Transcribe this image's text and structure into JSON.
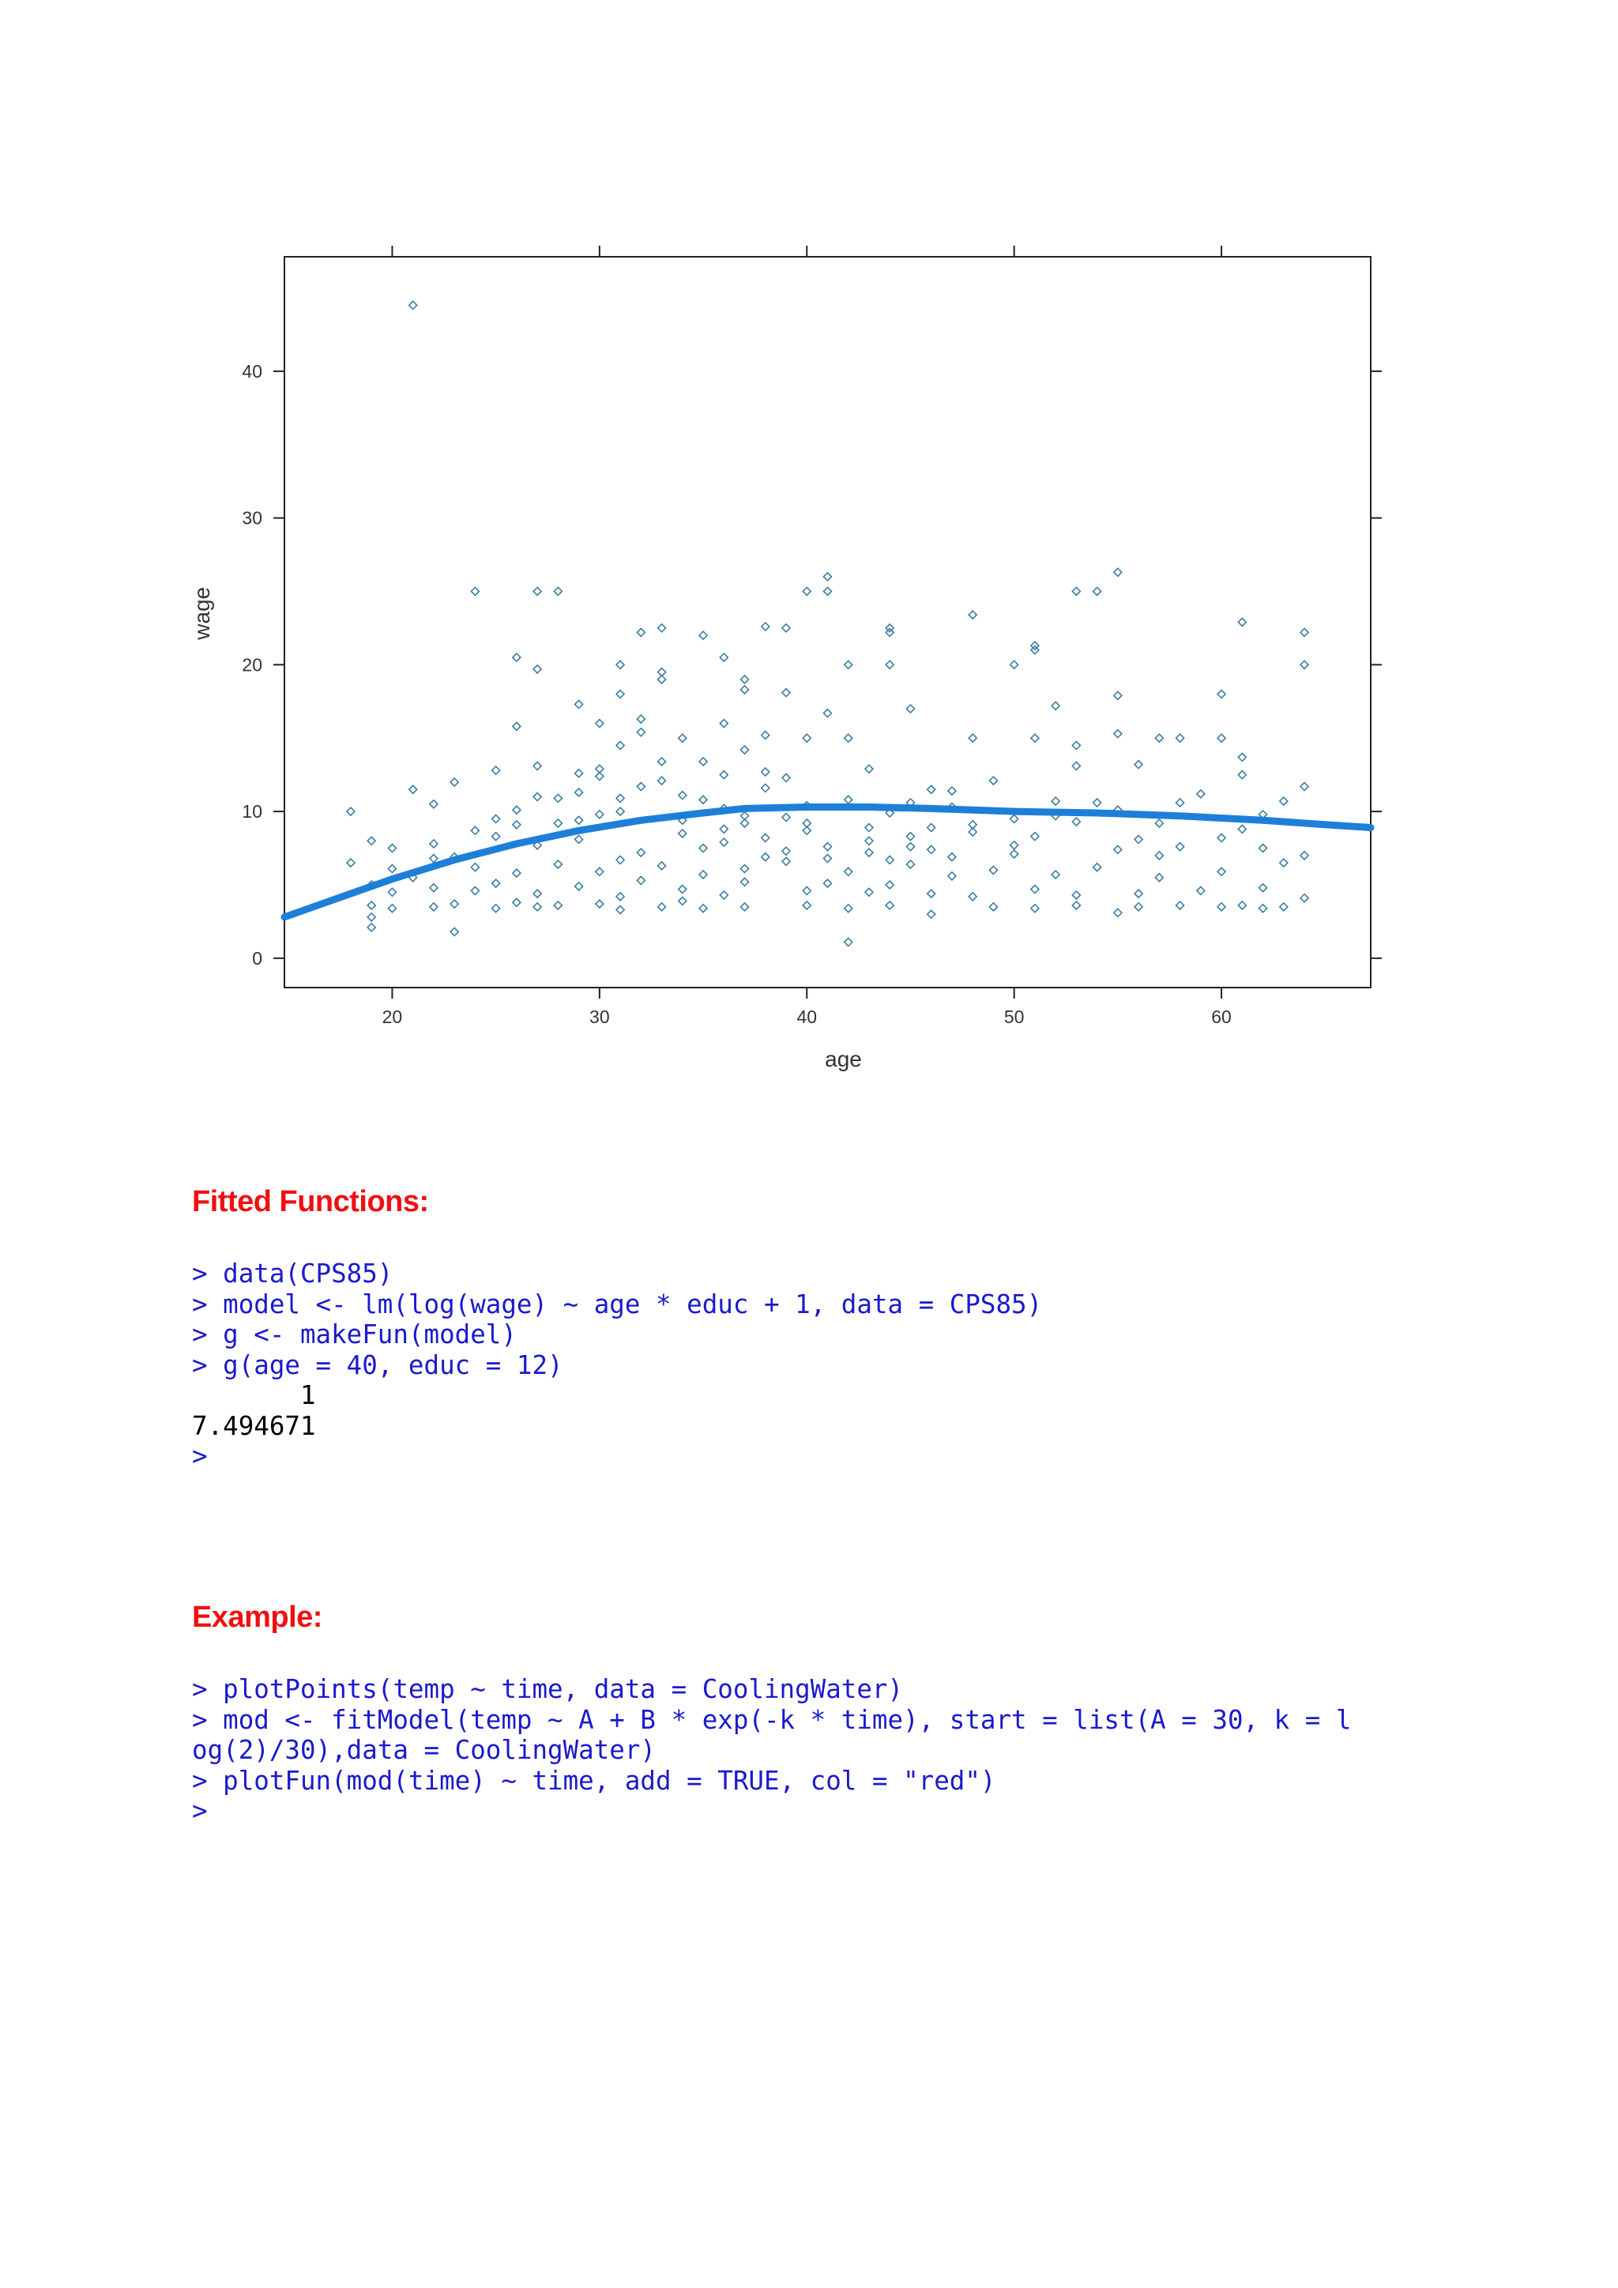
{
  "chart_data": {
    "type": "scatter",
    "xlabel": "age",
    "ylabel": "wage",
    "xlim": [
      14.8,
      67.2
    ],
    "ylim": [
      -2,
      47.8
    ],
    "xticks": [
      20,
      30,
      40,
      50,
      60
    ],
    "yticks": [
      0,
      10,
      20,
      30,
      40
    ],
    "grid": false,
    "point_color": "#3a7ea0",
    "curve_color": "#1e7fd8",
    "points": [
      [
        21,
        44.5
      ],
      [
        41,
        26
      ],
      [
        55,
        26.3
      ],
      [
        24,
        25
      ],
      [
        27,
        25
      ],
      [
        28,
        25
      ],
      [
        40,
        25
      ],
      [
        41,
        25
      ],
      [
        53,
        25
      ],
      [
        54,
        25
      ],
      [
        61,
        22.9
      ],
      [
        48,
        23.4
      ],
      [
        32,
        22.2
      ],
      [
        33,
        22.5
      ],
      [
        35,
        22
      ],
      [
        38,
        22.6
      ],
      [
        39,
        22.5
      ],
      [
        44,
        22.5
      ],
      [
        44,
        22.2
      ],
      [
        64,
        22.2
      ],
      [
        26,
        20.5
      ],
      [
        36,
        20.5
      ],
      [
        42,
        20
      ],
      [
        44,
        20
      ],
      [
        50,
        20
      ],
      [
        51,
        21
      ],
      [
        51,
        21.3
      ],
      [
        64,
        20
      ],
      [
        27,
        19.7
      ],
      [
        31,
        18
      ],
      [
        31,
        20
      ],
      [
        33,
        19.5
      ],
      [
        33,
        19
      ],
      [
        37,
        19
      ],
      [
        37,
        18.3
      ],
      [
        39,
        18.1
      ],
      [
        55,
        17.9
      ],
      [
        60,
        18
      ],
      [
        52,
        17.2
      ],
      [
        29,
        17.3
      ],
      [
        45,
        17
      ],
      [
        41,
        16.7
      ],
      [
        26,
        15.8
      ],
      [
        30,
        16
      ],
      [
        32,
        16.3
      ],
      [
        32,
        15.4
      ],
      [
        34,
        15
      ],
      [
        36,
        16
      ],
      [
        38,
        15.2
      ],
      [
        40,
        15
      ],
      [
        42,
        15
      ],
      [
        48,
        15
      ],
      [
        51,
        15
      ],
      [
        55,
        15.3
      ],
      [
        57,
        15
      ],
      [
        58,
        15
      ],
      [
        60,
        15
      ],
      [
        31,
        14.5
      ],
      [
        37,
        14.2
      ],
      [
        53,
        14.5
      ],
      [
        61,
        13.7
      ],
      [
        25,
        12.8
      ],
      [
        27,
        13.1
      ],
      [
        29,
        12.6
      ],
      [
        30,
        12.4
      ],
      [
        33,
        13.4
      ],
      [
        36,
        12.5
      ],
      [
        38,
        12.7
      ],
      [
        43,
        12.9
      ],
      [
        46,
        11.5
      ],
      [
        49,
        12.1
      ],
      [
        53,
        13.1
      ],
      [
        56,
        13.2
      ],
      [
        23,
        12
      ],
      [
        21,
        11.5
      ],
      [
        61,
        12.5
      ],
      [
        64,
        11.7
      ],
      [
        59,
        11.2
      ],
      [
        18,
        10
      ],
      [
        22,
        10.5
      ],
      [
        35,
        10.8
      ],
      [
        40,
        10.4
      ],
      [
        45,
        10.6
      ],
      [
        47,
        10.3
      ],
      [
        52,
        10.7
      ],
      [
        54,
        10.6
      ],
      [
        58,
        10.6
      ],
      [
        63,
        10.7
      ],
      [
        26,
        10.1
      ],
      [
        31,
        10
      ],
      [
        28,
        9.2
      ],
      [
        30,
        9.8
      ],
      [
        34,
        9.4
      ],
      [
        37,
        9.7
      ],
      [
        39,
        9.6
      ],
      [
        44,
        9.9
      ],
      [
        48,
        9.1
      ],
      [
        53,
        9.3
      ],
      [
        57,
        9.2
      ],
      [
        61,
        8.8
      ],
      [
        19,
        8
      ],
      [
        20,
        7.5
      ],
      [
        22,
        7.8
      ],
      [
        25,
        8.3
      ],
      [
        27,
        7.7
      ],
      [
        29,
        8.1
      ],
      [
        32,
        7.2
      ],
      [
        36,
        7.9
      ],
      [
        38,
        8.2
      ],
      [
        41,
        7.6
      ],
      [
        43,
        8
      ],
      [
        46,
        7.4
      ],
      [
        50,
        7.1
      ],
      [
        55,
        7.4
      ],
      [
        57,
        7
      ],
      [
        62,
        7.5
      ],
      [
        64,
        7
      ],
      [
        18,
        6.5
      ],
      [
        20,
        6.1
      ],
      [
        21,
        5.5
      ],
      [
        23,
        6.9
      ],
      [
        24,
        6.2
      ],
      [
        26,
        5.8
      ],
      [
        28,
        6.4
      ],
      [
        30,
        5.9
      ],
      [
        31,
        6.7
      ],
      [
        33,
        6.3
      ],
      [
        35,
        5.7
      ],
      [
        37,
        6.1
      ],
      [
        39,
        6.6
      ],
      [
        42,
        5.9
      ],
      [
        45,
        6.4
      ],
      [
        47,
        5.6
      ],
      [
        49,
        6
      ],
      [
        52,
        5.7
      ],
      [
        54,
        6.2
      ],
      [
        57,
        5.5
      ],
      [
        60,
        5.9
      ],
      [
        63,
        6.5
      ],
      [
        19,
        5
      ],
      [
        20,
        4.5
      ],
      [
        22,
        4.8
      ],
      [
        24,
        4.6
      ],
      [
        25,
        5.1
      ],
      [
        27,
        4.4
      ],
      [
        29,
        4.9
      ],
      [
        31,
        4.2
      ],
      [
        32,
        5.3
      ],
      [
        34,
        4.7
      ],
      [
        36,
        4.3
      ],
      [
        37,
        5.2
      ],
      [
        40,
        4.6
      ],
      [
        41,
        5.1
      ],
      [
        43,
        4.5
      ],
      [
        44,
        5
      ],
      [
        46,
        4.4
      ],
      [
        48,
        4.2
      ],
      [
        51,
        4.7
      ],
      [
        53,
        4.3
      ],
      [
        56,
        4.4
      ],
      [
        59,
        4.6
      ],
      [
        62,
        4.8
      ],
      [
        64,
        4.1
      ],
      [
        19,
        3.6
      ],
      [
        20,
        3.4
      ],
      [
        22,
        3.5
      ],
      [
        23,
        3.7
      ],
      [
        25,
        3.4
      ],
      [
        26,
        3.8
      ],
      [
        27,
        3.5
      ],
      [
        28,
        3.6
      ],
      [
        30,
        3.7
      ],
      [
        31,
        3.3
      ],
      [
        33,
        3.5
      ],
      [
        34,
        3.9
      ],
      [
        35,
        3.4
      ],
      [
        37,
        3.5
      ],
      [
        40,
        3.6
      ],
      [
        42,
        3.4
      ],
      [
        44,
        3.6
      ],
      [
        46,
        3.0
      ],
      [
        49,
        3.5
      ],
      [
        51,
        3.4
      ],
      [
        53,
        3.6
      ],
      [
        55,
        3.1
      ],
      [
        56,
        3.5
      ],
      [
        58,
        3.6
      ],
      [
        60,
        3.5
      ],
      [
        61,
        3.6
      ],
      [
        62,
        3.4
      ],
      [
        63,
        3.5
      ],
      [
        19,
        2.1
      ],
      [
        19,
        2.8
      ],
      [
        23,
        1.8
      ],
      [
        42,
        1.1
      ],
      [
        22,
        6.8
      ],
      [
        28,
        10.9
      ],
      [
        29,
        11.3
      ],
      [
        30,
        12.9
      ],
      [
        34,
        11.1
      ],
      [
        35,
        13.4
      ],
      [
        36,
        10.2
      ],
      [
        38,
        11.6
      ],
      [
        39,
        12.3
      ],
      [
        40,
        9.2
      ],
      [
        42,
        10.8
      ],
      [
        43,
        8.9
      ],
      [
        45,
        8.3
      ],
      [
        47,
        11.4
      ],
      [
        50,
        9.5
      ],
      [
        55,
        10.1
      ],
      [
        56,
        8.1
      ],
      [
        58,
        7.6
      ],
      [
        60,
        8.2
      ],
      [
        62,
        9.8
      ],
      [
        24,
        8.7
      ],
      [
        25,
        9.5
      ],
      [
        26,
        9.1
      ],
      [
        27,
        11
      ],
      [
        29,
        9.4
      ],
      [
        31,
        10.9
      ],
      [
        32,
        11.7
      ],
      [
        33,
        12.1
      ],
      [
        34,
        8.5
      ],
      [
        35,
        7.5
      ],
      [
        36,
        8.8
      ],
      [
        37,
        9.2
      ],
      [
        38,
        6.9
      ],
      [
        39,
        7.3
      ],
      [
        40,
        8.7
      ],
      [
        41,
        6.8
      ],
      [
        43,
        7.2
      ],
      [
        44,
        6.7
      ],
      [
        45,
        7.6
      ],
      [
        46,
        8.9
      ],
      [
        47,
        6.9
      ],
      [
        48,
        8.6
      ],
      [
        50,
        7.7
      ],
      [
        51,
        8.3
      ],
      [
        52,
        9.7
      ]
    ],
    "curve": [
      [
        14.8,
        2.8
      ],
      [
        17,
        3.9
      ],
      [
        20,
        5.4
      ],
      [
        23,
        6.7
      ],
      [
        26,
        7.8
      ],
      [
        29,
        8.7
      ],
      [
        32,
        9.4
      ],
      [
        35,
        9.9
      ],
      [
        37,
        10.2
      ],
      [
        40,
        10.3
      ],
      [
        43,
        10.3
      ],
      [
        46,
        10.2
      ],
      [
        50,
        10.0
      ],
      [
        54,
        9.9
      ],
      [
        58,
        9.7
      ],
      [
        62,
        9.4
      ],
      [
        65,
        9.1
      ],
      [
        67.2,
        8.9
      ]
    ]
  },
  "fitted": {
    "heading": "Fitted Functions:",
    "lines": [
      {
        "text": "> data(CPS85)",
        "kind": "input"
      },
      {
        "text": "> model <- lm(log(wage) ~ age * educ + 1, data = CPS85)",
        "kind": "input"
      },
      {
        "text": "> g <- makeFun(model)",
        "kind": "input"
      },
      {
        "text": "> g(age = 40, educ = 12)",
        "kind": "input"
      },
      {
        "text": "       1",
        "kind": "output"
      },
      {
        "text": "7.494671",
        "kind": "output"
      },
      {
        "text": ">",
        "kind": "input"
      }
    ]
  },
  "example": {
    "heading": "Example:",
    "lines": [
      {
        "text": "> plotPoints(temp ~ time, data = CoolingWater)",
        "kind": "input"
      },
      {
        "text": "> mod <- fitModel(temp ~ A + B * exp(-k * time), start = list(A = 30, k = l",
        "kind": "input"
      },
      {
        "text": "og(2)/30),data = CoolingWater)",
        "kind": "input"
      },
      {
        "text": "> plotFun(mod(time) ~ time, add = TRUE, col = \"red\")",
        "kind": "input"
      },
      {
        "text": ">",
        "kind": "input"
      }
    ]
  }
}
